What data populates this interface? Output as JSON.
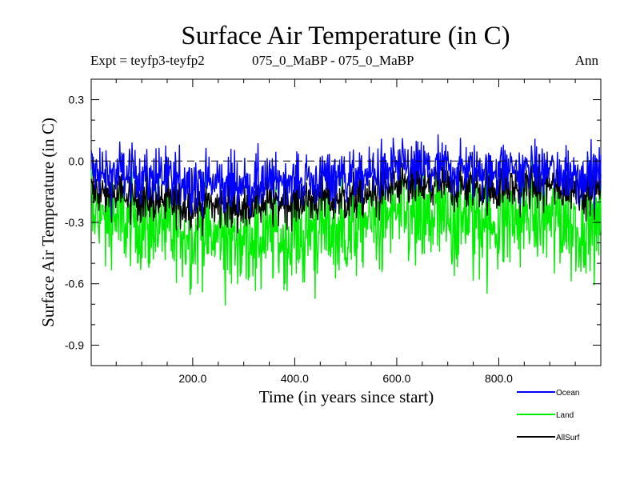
{
  "header": {
    "title": "Surface Air Temperature (in C)",
    "left": "Expt = teyfp3-teyfp2",
    "center": "075_0_MaBP - 075_0_MaBP",
    "right": "Ann"
  },
  "chart_data": {
    "type": "line",
    "title": "Surface Air Temperature (in C)",
    "xlabel": "Time (in years since start)",
    "ylabel": "Surface Air Temperature (in C)",
    "xlim": [
      1,
      1000
    ],
    "ylim": [
      -1.0,
      0.4
    ],
    "xticks": [
      200,
      400,
      600,
      800
    ],
    "xtick_labels": [
      "200.0",
      "400.0",
      "600.0",
      "800.0"
    ],
    "yticks": [
      0.3,
      0.0,
      -0.3,
      -0.6,
      -0.9
    ],
    "ytick_labels": [
      "0.3",
      "0.0",
      "-0.3",
      "-0.6",
      "-0.9"
    ],
    "reference_line": 0.0,
    "x": [
      1,
      50,
      100,
      150,
      200,
      250,
      300,
      350,
      400,
      450,
      500,
      550,
      600,
      650,
      700,
      750,
      800,
      850,
      900,
      950,
      1000
    ],
    "series": [
      {
        "name": "Land",
        "color": "#00ee00",
        "values": [
          -0.25,
          -0.28,
          -0.3,
          -0.34,
          -0.36,
          -0.37,
          -0.38,
          -0.38,
          -0.36,
          -0.35,
          -0.33,
          -0.3,
          -0.28,
          -0.27,
          -0.28,
          -0.28,
          -0.3,
          -0.29,
          -0.3,
          -0.31,
          -0.32
        ]
      },
      {
        "name": "AllSurf",
        "color": "#000000",
        "values": [
          -0.15,
          -0.17,
          -0.18,
          -0.2,
          -0.22,
          -0.22,
          -0.22,
          -0.21,
          -0.2,
          -0.19,
          -0.18,
          -0.16,
          -0.13,
          -0.12,
          -0.12,
          -0.13,
          -0.13,
          -0.12,
          -0.13,
          -0.14,
          -0.14
        ]
      },
      {
        "name": "Ocean",
        "color": "#0000ff",
        "values": [
          -0.05,
          -0.06,
          -0.07,
          -0.09,
          -0.1,
          -0.11,
          -0.11,
          -0.1,
          -0.09,
          -0.08,
          -0.08,
          -0.06,
          -0.03,
          -0.03,
          -0.04,
          -0.04,
          -0.04,
          -0.04,
          -0.05,
          -0.06,
          -0.06
        ]
      }
    ],
    "legend": [
      "Ocean",
      "Land",
      "AllSurf"
    ],
    "legend_position": "bottom-right"
  }
}
